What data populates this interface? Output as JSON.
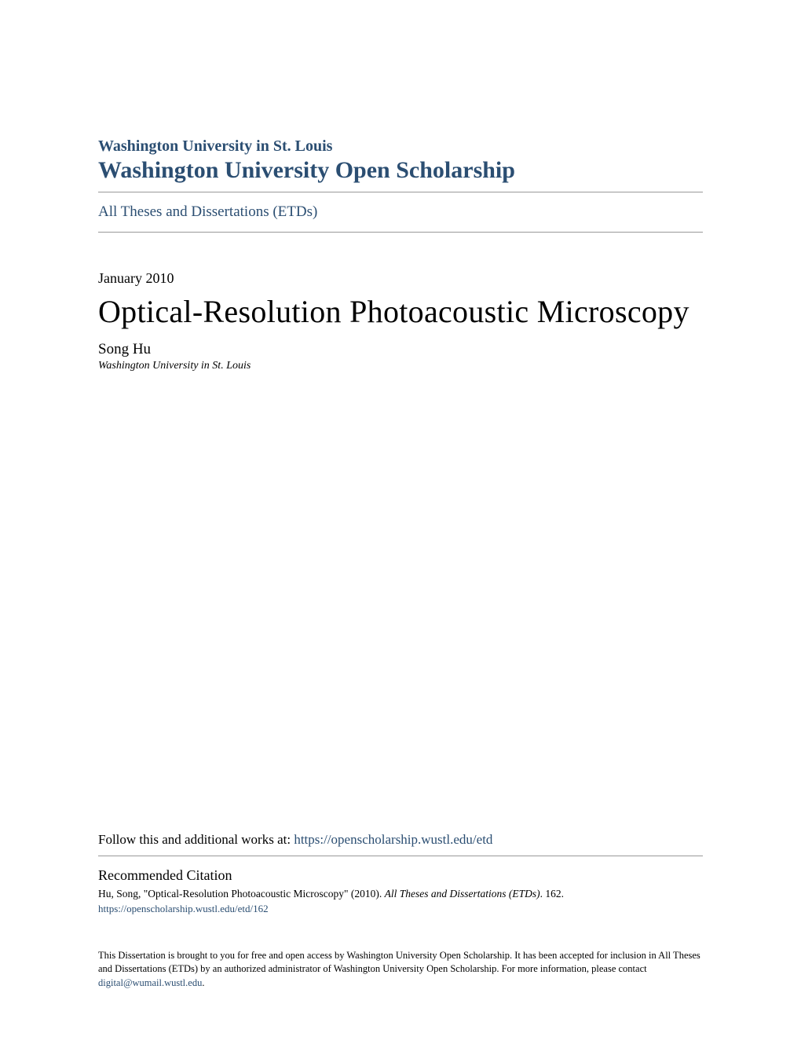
{
  "header": {
    "institution": "Washington University in St. Louis",
    "repository": "Washington University Open Scholarship",
    "collection_link": "All Theses and Dissertations (ETDs)"
  },
  "paper": {
    "date": "January 2010",
    "title": "Optical-Resolution Photoacoustic Microscopy",
    "author": "Song Hu",
    "affiliation": "Washington University in St. Louis"
  },
  "follow": {
    "prefix": "Follow this and additional works at: ",
    "url": "https://openscholarship.wustl.edu/etd"
  },
  "citation": {
    "heading": "Recommended Citation",
    "text_prefix": "Hu, Song, \"Optical-Resolution Photoacoustic Microscopy\" (2010). ",
    "text_italic": "All Theses and Dissertations (ETDs)",
    "text_suffix": ". 162.",
    "url": "https://openscholarship.wustl.edu/etd/162"
  },
  "footer": {
    "text_part1": "This Dissertation is brought to you for free and open access by Washington University Open Scholarship. It has been accepted for inclusion in All Theses and Dissertations (ETDs) by an authorized administrator of Washington University Open Scholarship. For more information, please contact ",
    "email": "digital@wumail.wustl.edu",
    "text_part2": "."
  },
  "colors": {
    "link_color": "#2b4e72",
    "text_color": "#000000",
    "divider_color": "#999999",
    "background": "#ffffff"
  },
  "typography": {
    "institution_fontsize": 20,
    "repository_fontsize": 30,
    "collection_fontsize": 19,
    "date_fontsize": 18,
    "title_fontsize": 40,
    "author_fontsize": 19,
    "affiliation_fontsize": 14,
    "follow_fontsize": 17,
    "citation_heading_fontsize": 18,
    "citation_text_fontsize": 13.5,
    "footer_fontsize": 12.5,
    "font_family": "Georgia, serif"
  }
}
